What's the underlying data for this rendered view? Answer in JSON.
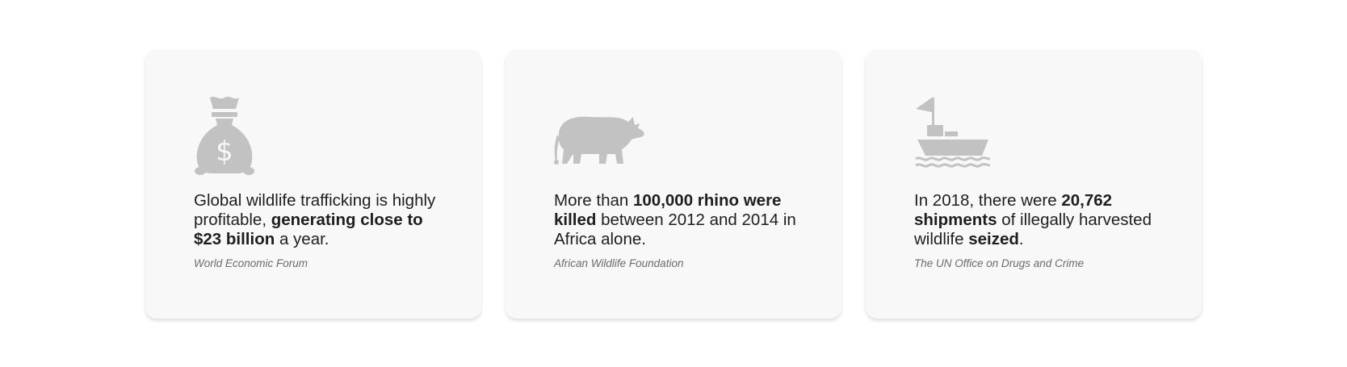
{
  "cards": [
    {
      "icon": "money-bag-icon",
      "text_1": "Global wildlife trafficking is highly profitable, ",
      "text_bold_1": "generating close to $23 billion",
      "text_2": " a year.",
      "source": "World Economic Forum"
    },
    {
      "icon": "rhino-icon",
      "text_1": "More than ",
      "text_bold_1": "100,000 rhino were killed",
      "text_2": " between 2012 and 2014 in Africa alone.",
      "source": "African Wildlife Foundation"
    },
    {
      "icon": "ship-icon",
      "text_1": "In 2018, there were ",
      "text_bold_1": "20,762 shipments",
      "text_2": " of illegally harvested wildlife ",
      "text_bold_2": "seized",
      "text_3": ".",
      "source": "The UN Office on Drugs and Crime"
    }
  ],
  "colors": {
    "card_background": "#f8f8f8",
    "icon": "#c2c2c2",
    "text": "#1e1e1e",
    "source": "#6b6b6b"
  }
}
